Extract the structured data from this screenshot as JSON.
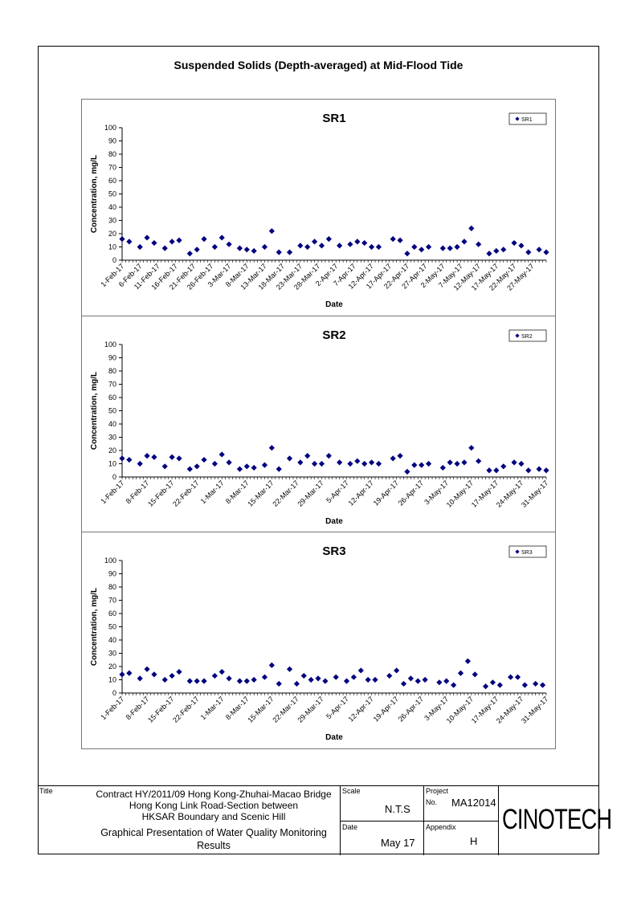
{
  "page": {
    "title": "Suspended Solids (Depth-averaged) at Mid-Flood Tide"
  },
  "title_block": {
    "title_label": "Title",
    "contract_lines": [
      "Contract HY/2011/09 Hong Kong-Zhuhai-Macao Bridge",
      "Hong Kong Link Road-Section between",
      "HKSAR Boundary and Scenic Hill"
    ],
    "subject_lines": [
      "Graphical Presentation of Water Quality Monitoring",
      "Results"
    ],
    "scale_label": "Scale",
    "scale_value": "N.T.S",
    "project_label": "Project",
    "project_no_label": "No.",
    "project_value": "MA12014",
    "date_label": "Date",
    "date_value": "May 17",
    "appendix_label": "Appendix",
    "appendix_value": "H",
    "logo_text": "CINOTECH"
  },
  "chart_data": [
    {
      "type": "scatter",
      "title": "SR1",
      "xlabel": "Date",
      "ylabel": "Concentration, mg/L",
      "ylim": [
        0,
        100
      ],
      "yticks": [
        0,
        10,
        20,
        30,
        40,
        50,
        60,
        70,
        80,
        90,
        100
      ],
      "xlim": [
        "2017-02-01",
        "2017-05-31"
      ],
      "xtick_labels": [
        "1-Feb-17",
        "6-Feb-17",
        "11-Feb-17",
        "16-Feb-17",
        "21-Feb-17",
        "26-Feb-17",
        "3-Mar-17",
        "8-Mar-17",
        "13-Mar-17",
        "18-Mar-17",
        "23-Mar-17",
        "28-Mar-17",
        "2-Apr-17",
        "7-Apr-17",
        "12-Apr-17",
        "17-Apr-17",
        "22-Apr-17",
        "27-Apr-17",
        "2-May-17",
        "7-May-17",
        "12-May-17",
        "17-May-17",
        "22-May-17",
        "27-May-17"
      ],
      "xtick_dates": [
        "2017-02-01",
        "2017-02-06",
        "2017-02-11",
        "2017-02-16",
        "2017-02-21",
        "2017-02-26",
        "2017-03-03",
        "2017-03-08",
        "2017-03-13",
        "2017-03-18",
        "2017-03-23",
        "2017-03-28",
        "2017-04-02",
        "2017-04-07",
        "2017-04-12",
        "2017-04-17",
        "2017-04-22",
        "2017-04-27",
        "2017-05-02",
        "2017-05-07",
        "2017-05-12",
        "2017-05-17",
        "2017-05-22",
        "2017-05-27"
      ],
      "legend": "top-right",
      "grid": false,
      "series": [
        {
          "name": "SR1",
          "color": "#000080",
          "points": [
            [
              "2017-02-01",
              16
            ],
            [
              "2017-02-03",
              14
            ],
            [
              "2017-02-06",
              10
            ],
            [
              "2017-02-08",
              17
            ],
            [
              "2017-02-10",
              13
            ],
            [
              "2017-02-13",
              9
            ],
            [
              "2017-02-15",
              14
            ],
            [
              "2017-02-17",
              15
            ],
            [
              "2017-02-20",
              5
            ],
            [
              "2017-02-22",
              8
            ],
            [
              "2017-02-24",
              16
            ],
            [
              "2017-02-27",
              10
            ],
            [
              "2017-03-01",
              17
            ],
            [
              "2017-03-03",
              12
            ],
            [
              "2017-03-06",
              9
            ],
            [
              "2017-03-08",
              8
            ],
            [
              "2017-03-10",
              7
            ],
            [
              "2017-03-13",
              10
            ],
            [
              "2017-03-15",
              22
            ],
            [
              "2017-03-17",
              6
            ],
            [
              "2017-03-20",
              6
            ],
            [
              "2017-03-23",
              11
            ],
            [
              "2017-03-25",
              10
            ],
            [
              "2017-03-27",
              14
            ],
            [
              "2017-03-29",
              11
            ],
            [
              "2017-03-31",
              16
            ],
            [
              "2017-04-03",
              11
            ],
            [
              "2017-04-06",
              12
            ],
            [
              "2017-04-08",
              14
            ],
            [
              "2017-04-10",
              13
            ],
            [
              "2017-04-12",
              10
            ],
            [
              "2017-04-14",
              10
            ],
            [
              "2017-04-18",
              16
            ],
            [
              "2017-04-20",
              15
            ],
            [
              "2017-04-22",
              5
            ],
            [
              "2017-04-24",
              10
            ],
            [
              "2017-04-26",
              8
            ],
            [
              "2017-04-28",
              10
            ],
            [
              "2017-05-02",
              9
            ],
            [
              "2017-05-04",
              9
            ],
            [
              "2017-05-06",
              10
            ],
            [
              "2017-05-08",
              14
            ],
            [
              "2017-05-10",
              24
            ],
            [
              "2017-05-12",
              12
            ],
            [
              "2017-05-15",
              5
            ],
            [
              "2017-05-17",
              7
            ],
            [
              "2017-05-19",
              8
            ],
            [
              "2017-05-22",
              13
            ],
            [
              "2017-05-24",
              11
            ],
            [
              "2017-05-26",
              6
            ],
            [
              "2017-05-29",
              8
            ],
            [
              "2017-05-31",
              6
            ]
          ]
        }
      ]
    },
    {
      "type": "scatter",
      "title": "SR2",
      "xlabel": "Date",
      "ylabel": "Concentration, mg/L",
      "ylim": [
        0,
        100
      ],
      "yticks": [
        0,
        10,
        20,
        30,
        40,
        50,
        60,
        70,
        80,
        90,
        100
      ],
      "xlim": [
        "2017-02-01",
        "2017-05-31"
      ],
      "xtick_labels": [
        "1-Feb-17",
        "8-Feb-17",
        "15-Feb-17",
        "22-Feb-17",
        "1-Mar-17",
        "8-Mar-17",
        "15-Mar-17",
        "22-Mar-17",
        "29-Mar-17",
        "5-Apr-17",
        "12-Apr-17",
        "19-Apr-17",
        "26-Apr-17",
        "3-May-17",
        "10-May-17",
        "17-May-17",
        "24-May-17",
        "31-May-17"
      ],
      "xtick_dates": [
        "2017-02-01",
        "2017-02-08",
        "2017-02-15",
        "2017-02-22",
        "2017-03-01",
        "2017-03-08",
        "2017-03-15",
        "2017-03-22",
        "2017-03-29",
        "2017-04-05",
        "2017-04-12",
        "2017-04-19",
        "2017-04-26",
        "2017-05-03",
        "2017-05-10",
        "2017-05-17",
        "2017-05-24",
        "2017-05-31"
      ],
      "legend": "top-right",
      "grid": false,
      "series": [
        {
          "name": "SR2",
          "color": "#000080",
          "points": [
            [
              "2017-02-01",
              14
            ],
            [
              "2017-02-03",
              13
            ],
            [
              "2017-02-06",
              10
            ],
            [
              "2017-02-08",
              16
            ],
            [
              "2017-02-10",
              15
            ],
            [
              "2017-02-13",
              8
            ],
            [
              "2017-02-15",
              15
            ],
            [
              "2017-02-17",
              14
            ],
            [
              "2017-02-20",
              6
            ],
            [
              "2017-02-22",
              8
            ],
            [
              "2017-02-24",
              13
            ],
            [
              "2017-02-27",
              10
            ],
            [
              "2017-03-01",
              17
            ],
            [
              "2017-03-03",
              11
            ],
            [
              "2017-03-06",
              6
            ],
            [
              "2017-03-08",
              8
            ],
            [
              "2017-03-10",
              7
            ],
            [
              "2017-03-13",
              9
            ],
            [
              "2017-03-15",
              22
            ],
            [
              "2017-03-17",
              6
            ],
            [
              "2017-03-20",
              14
            ],
            [
              "2017-03-23",
              11
            ],
            [
              "2017-03-25",
              16
            ],
            [
              "2017-03-27",
              10
            ],
            [
              "2017-03-29",
              10
            ],
            [
              "2017-03-31",
              16
            ],
            [
              "2017-04-03",
              11
            ],
            [
              "2017-04-06",
              10
            ],
            [
              "2017-04-08",
              12
            ],
            [
              "2017-04-10",
              10
            ],
            [
              "2017-04-12",
              11
            ],
            [
              "2017-04-14",
              10
            ],
            [
              "2017-04-18",
              14
            ],
            [
              "2017-04-20",
              16
            ],
            [
              "2017-04-22",
              4
            ],
            [
              "2017-04-24",
              9
            ],
            [
              "2017-04-26",
              9
            ],
            [
              "2017-04-28",
              10
            ],
            [
              "2017-05-02",
              7
            ],
            [
              "2017-05-04",
              11
            ],
            [
              "2017-05-06",
              10
            ],
            [
              "2017-05-08",
              11
            ],
            [
              "2017-05-10",
              22
            ],
            [
              "2017-05-12",
              12
            ],
            [
              "2017-05-15",
              5
            ],
            [
              "2017-05-17",
              5
            ],
            [
              "2017-05-19",
              8
            ],
            [
              "2017-05-22",
              11
            ],
            [
              "2017-05-24",
              10
            ],
            [
              "2017-05-26",
              5
            ],
            [
              "2017-05-29",
              6
            ],
            [
              "2017-05-31",
              5
            ]
          ]
        }
      ]
    },
    {
      "type": "scatter",
      "title": "SR3",
      "xlabel": "Date",
      "ylabel": "Concentration, mg/L",
      "ylim": [
        0,
        100
      ],
      "yticks": [
        0,
        10,
        20,
        30,
        40,
        50,
        60,
        70,
        80,
        90,
        100
      ],
      "xlim": [
        "2017-02-01",
        "2017-05-31"
      ],
      "xtick_labels": [
        "1-Feb-17",
        "8-Feb-17",
        "15-Feb-17",
        "22-Feb-17",
        "1-Mar-17",
        "8-Mar-17",
        "15-Mar-17",
        "22-Mar-17",
        "29-Mar-17",
        "5-Apr-17",
        "12-Apr-17",
        "19-Apr-17",
        "26-Apr-17",
        "3-May-17",
        "10-May-17",
        "17-May-17",
        "24-May-17",
        "31-May-17"
      ],
      "xtick_dates": [
        "2017-02-01",
        "2017-02-08",
        "2017-02-15",
        "2017-02-22",
        "2017-03-01",
        "2017-03-08",
        "2017-03-15",
        "2017-03-22",
        "2017-03-29",
        "2017-04-05",
        "2017-04-12",
        "2017-04-19",
        "2017-04-26",
        "2017-05-03",
        "2017-05-10",
        "2017-05-17",
        "2017-05-24",
        "2017-05-31"
      ],
      "legend": "top-right",
      "grid": false,
      "series": [
        {
          "name": "SR3",
          "color": "#000080",
          "points": [
            [
              "2017-02-01",
              14
            ],
            [
              "2017-02-03",
              15
            ],
            [
              "2017-02-06",
              11
            ],
            [
              "2017-02-08",
              18
            ],
            [
              "2017-02-10",
              14
            ],
            [
              "2017-02-13",
              10
            ],
            [
              "2017-02-15",
              13
            ],
            [
              "2017-02-17",
              16
            ],
            [
              "2017-02-20",
              9
            ],
            [
              "2017-02-22",
              9
            ],
            [
              "2017-02-24",
              9
            ],
            [
              "2017-02-27",
              13
            ],
            [
              "2017-03-01",
              16
            ],
            [
              "2017-03-03",
              11
            ],
            [
              "2017-03-06",
              9
            ],
            [
              "2017-03-08",
              9
            ],
            [
              "2017-03-10",
              10
            ],
            [
              "2017-03-13",
              12
            ],
            [
              "2017-03-15",
              21
            ],
            [
              "2017-03-17",
              7
            ],
            [
              "2017-03-20",
              18
            ],
            [
              "2017-03-22",
              7
            ],
            [
              "2017-03-24",
              13
            ],
            [
              "2017-03-26",
              10
            ],
            [
              "2017-03-28",
              11
            ],
            [
              "2017-03-30",
              9
            ],
            [
              "2017-04-02",
              12
            ],
            [
              "2017-04-05",
              9
            ],
            [
              "2017-04-07",
              12
            ],
            [
              "2017-04-09",
              17
            ],
            [
              "2017-04-11",
              10
            ],
            [
              "2017-04-13",
              10
            ],
            [
              "2017-04-17",
              13
            ],
            [
              "2017-04-19",
              17
            ],
            [
              "2017-04-21",
              7
            ],
            [
              "2017-04-23",
              11
            ],
            [
              "2017-04-25",
              9
            ],
            [
              "2017-04-27",
              10
            ],
            [
              "2017-05-01",
              8
            ],
            [
              "2017-05-03",
              9
            ],
            [
              "2017-05-05",
              6
            ],
            [
              "2017-05-07",
              15
            ],
            [
              "2017-05-09",
              24
            ],
            [
              "2017-05-11",
              14
            ],
            [
              "2017-05-14",
              5
            ],
            [
              "2017-05-16",
              8
            ],
            [
              "2017-05-18",
              6
            ],
            [
              "2017-05-21",
              12
            ],
            [
              "2017-05-23",
              12
            ],
            [
              "2017-05-25",
              6
            ],
            [
              "2017-05-28",
              7
            ],
            [
              "2017-05-30",
              6
            ]
          ]
        }
      ]
    }
  ]
}
